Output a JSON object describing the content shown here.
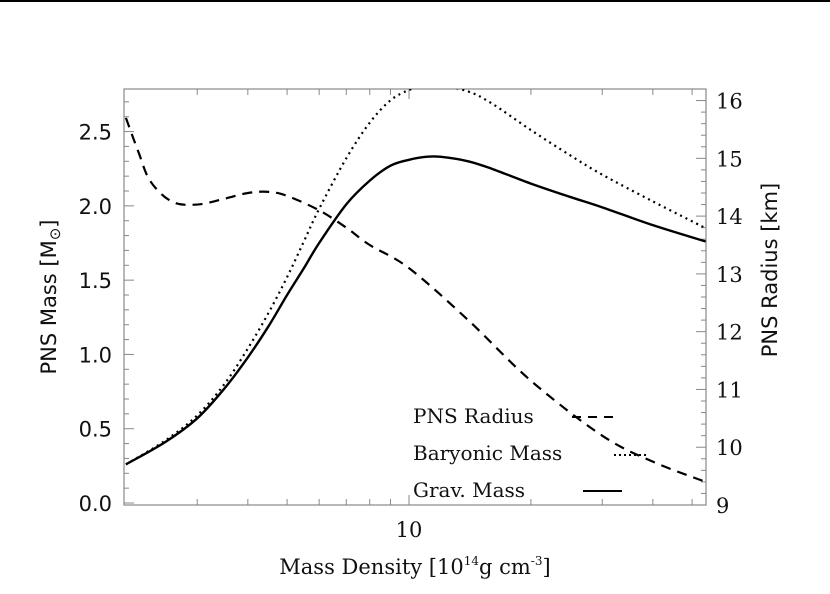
{
  "chart_data": {
    "type": "line",
    "title": "",
    "xlabel": "Mass Density [10^14 g cm^-3]",
    "xlabel_parts": {
      "main": "Mass Density [10",
      "exp1": "14",
      "mid": "g cm",
      "exp2": "-3",
      "end": "]"
    },
    "x_scale": "log",
    "xlim": [
      2.0,
      54
    ],
    "x_tick_labels": [
      {
        "value": 10,
        "label": "10"
      }
    ],
    "x_minor_ticks": [
      3,
      4,
      5,
      6,
      7,
      8,
      9,
      20,
      30,
      40,
      50
    ],
    "ylabel_left": "PNS Mass [M⊙]",
    "ylabel_left_parts": {
      "main": "PNS Mass [M",
      "sub": "⊙",
      "end": "]"
    },
    "ylim_left": [
      0.0,
      2.8
    ],
    "y_ticks_left": [
      {
        "value": 0.0,
        "label": "0.0"
      },
      {
        "value": 0.5,
        "label": "0.5"
      },
      {
        "value": 1.0,
        "label": "1.0"
      },
      {
        "value": 1.5,
        "label": "1.5"
      },
      {
        "value": 2.0,
        "label": "2.0"
      },
      {
        "value": 2.5,
        "label": "2.5"
      }
    ],
    "ylabel_right": "PNS Radius [km]",
    "ylim_right": [
      9.0,
      16.2
    ],
    "y_ticks_right": [
      {
        "value": 9,
        "label": "9"
      },
      {
        "value": 10,
        "label": "10"
      },
      {
        "value": 11,
        "label": "11"
      },
      {
        "value": 12,
        "label": "12"
      },
      {
        "value": 13,
        "label": "13"
      },
      {
        "value": 14,
        "label": "14"
      },
      {
        "value": 15,
        "label": "15"
      },
      {
        "value": 16,
        "label": "16"
      }
    ],
    "grid": false,
    "legend_position": "lower right (inside)",
    "series": [
      {
        "name": "PNS Radius",
        "axis": "right",
        "style": "dashed",
        "x": [
          2.0,
          2.15,
          2.3,
          2.6,
          3.0,
          3.5,
          4.0,
          4.5,
          5.0,
          6.0,
          7.0,
          8.0,
          10,
          14,
          20,
          30,
          40,
          54
        ],
        "y": [
          15.7,
          15.1,
          14.6,
          14.25,
          14.2,
          14.3,
          14.4,
          14.42,
          14.35,
          14.1,
          13.8,
          13.5,
          13.1,
          12.2,
          11.15,
          10.2,
          9.75,
          9.4
        ]
      },
      {
        "name": "Baryonic Mass",
        "axis": "left",
        "style": "dotted",
        "x": [
          2.0,
          2.5,
          3.0,
          3.5,
          4.0,
          4.5,
          5.0,
          5.5,
          6.0,
          7.0,
          8.0,
          9.0,
          10,
          11,
          12,
          14,
          16,
          20,
          25,
          30,
          40,
          54
        ],
        "y": [
          0.26,
          0.42,
          0.59,
          0.8,
          1.04,
          1.28,
          1.52,
          1.76,
          1.98,
          2.32,
          2.56,
          2.71,
          2.78,
          2.81,
          2.81,
          2.77,
          2.69,
          2.51,
          2.34,
          2.21,
          2.03,
          1.85
        ]
      },
      {
        "name": "Grav. Mass",
        "axis": "left",
        "style": "solid",
        "x": [
          2.0,
          2.5,
          3.0,
          3.5,
          4.0,
          4.5,
          5.0,
          5.5,
          6.0,
          7.0,
          8.0,
          9.0,
          10,
          11,
          12,
          14,
          16,
          20,
          25,
          30,
          40,
          54
        ],
        "y": [
          0.26,
          0.41,
          0.57,
          0.77,
          0.98,
          1.19,
          1.4,
          1.58,
          1.75,
          2.01,
          2.17,
          2.27,
          2.31,
          2.33,
          2.33,
          2.3,
          2.25,
          2.15,
          2.06,
          1.99,
          1.87,
          1.76
        ]
      }
    ],
    "legend": [
      {
        "label": "PNS Radius",
        "style": "dashed"
      },
      {
        "label": "Baryonic Mass",
        "style": "dotted"
      },
      {
        "label": "Grav. Mass",
        "style": "solid"
      }
    ]
  },
  "colors": {
    "line": "#000000",
    "axis": "#888888",
    "text": "#111111",
    "background": "#ffffff"
  }
}
